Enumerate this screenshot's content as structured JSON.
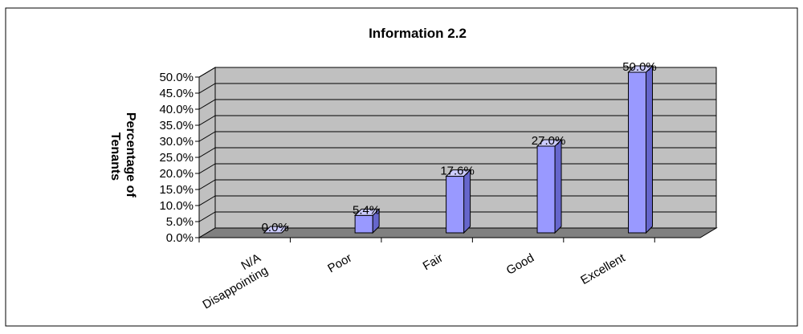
{
  "chart_data": {
    "type": "bar",
    "title": "Information 2.2",
    "ylabel_lines": [
      "Percentage of",
      "Tenants"
    ],
    "xlabel": "",
    "categories": [
      "N/A Disappointing",
      "Poor",
      "Fair",
      "Good",
      "Excellent"
    ],
    "category_label_lines": [
      [
        "N/A",
        "Disappointing"
      ],
      [
        "Poor"
      ],
      [
        "Fair"
      ],
      [
        "Good"
      ],
      [
        "Excellent"
      ]
    ],
    "values": [
      0.0,
      5.4,
      17.6,
      27.0,
      50.0
    ],
    "value_labels": [
      "0.0%",
      "5.4%",
      "17.6%",
      "27.0%",
      "50.0%"
    ],
    "ylim": [
      0,
      50
    ],
    "yticks": [
      "0.0%",
      "5.0%",
      "10.0%",
      "15.0%",
      "20.0%",
      "25.0%",
      "30.0%",
      "35.0%",
      "40.0%",
      "45.0%",
      "50.0%"
    ],
    "grid": true,
    "legend": "none",
    "three_d": true,
    "colors": {
      "bar_front": "#9999ff",
      "bar_side": "#6666cc",
      "bar_top": "#ccccff",
      "bar_stroke": "#000000",
      "wall": "#c0c0c0",
      "floor": "#808080",
      "gridline": "#000000"
    }
  }
}
